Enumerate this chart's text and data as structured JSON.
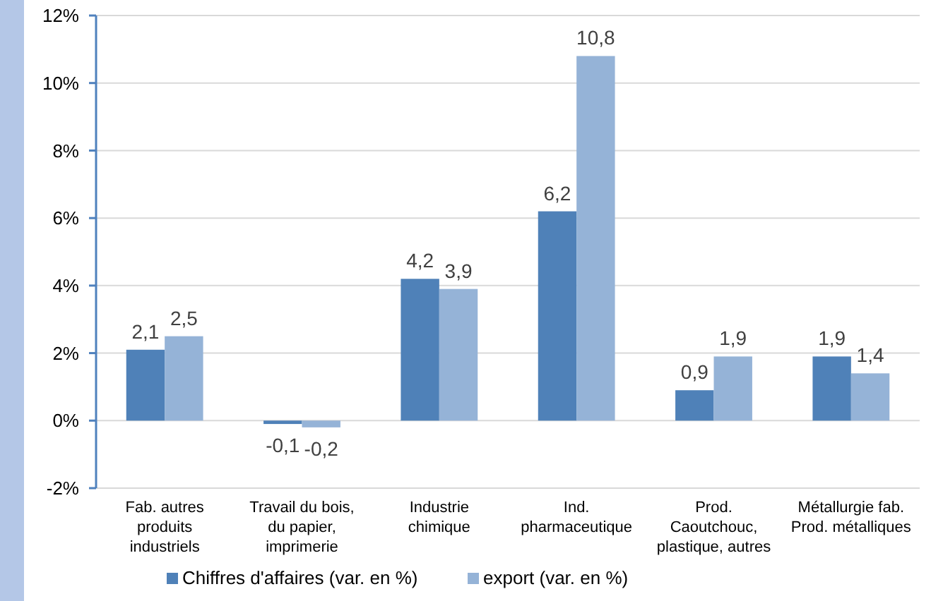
{
  "chart_data": {
    "type": "bar",
    "categories": [
      "Fab. autres produits industriels",
      "Travail du bois, du papier, imprimerie",
      "Industrie chimique",
      "Ind. pharmaceutique",
      "Prod. Caoutchouc, plastique, autres",
      "Métallurgie fab. Prod. métalliques"
    ],
    "series": [
      {
        "name": "Chiffres d'affaires (var. en %)",
        "color": "#4f81b8",
        "values": [
          2.1,
          -0.1,
          4.2,
          6.2,
          0.9,
          1.9
        ],
        "value_labels": [
          "2,1",
          "-0,1",
          "4,2",
          "6,2",
          "0,9",
          "1,9"
        ]
      },
      {
        "name": "export (var. en %)",
        "color": "#95b3d7",
        "values": [
          2.5,
          -0.2,
          3.9,
          10.8,
          1.9,
          1.4
        ],
        "value_labels": [
          "2,5",
          "-0,2",
          "3,9",
          "10,8",
          "1,9",
          "1,4"
        ]
      }
    ],
    "ylim": [
      -2,
      12
    ],
    "yticks": [
      {
        "value": -2,
        "label": "-2%"
      },
      {
        "value": 0,
        "label": "0%"
      },
      {
        "value": 2,
        "label": "2%"
      },
      {
        "value": 4,
        "label": "4%"
      },
      {
        "value": 6,
        "label": "6%"
      },
      {
        "value": 8,
        "label": "8%"
      },
      {
        "value": 10,
        "label": "10%"
      },
      {
        "value": 12,
        "label": "12%"
      }
    ],
    "grid": "y",
    "legend": "bottom"
  }
}
